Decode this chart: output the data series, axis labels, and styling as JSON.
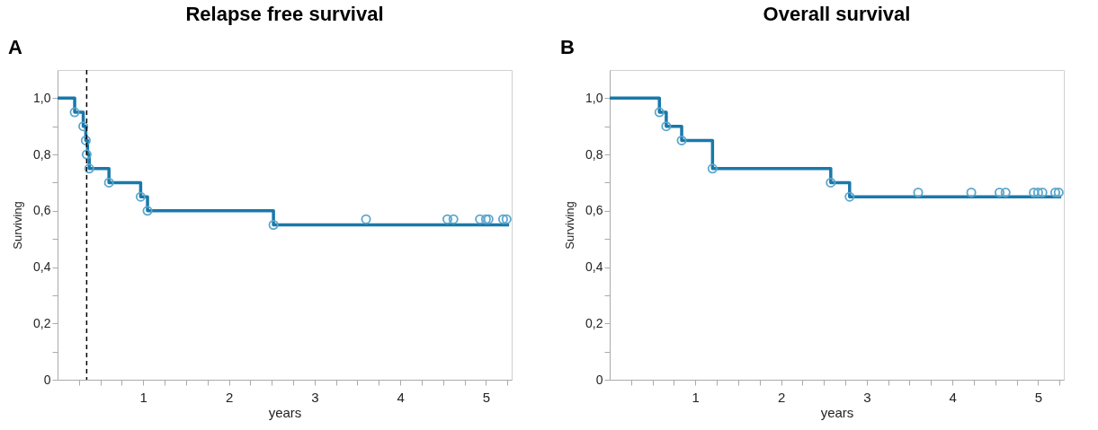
{
  "chart_data": [
    {
      "type": "step",
      "title": "Relapse free survival",
      "xlabel": "years",
      "ylabel": "Surviving",
      "annotations": [
        "A"
      ],
      "xlim": [
        0,
        5.3
      ],
      "ylim": [
        0,
        1.1
      ],
      "xticks": [
        {
          "value": 0.25,
          "label": null
        },
        {
          "value": 0.5,
          "label": null
        },
        {
          "value": 0.75,
          "label": null
        },
        1,
        {
          "value": 1.25,
          "label": null
        },
        {
          "value": 1.5,
          "label": null
        },
        {
          "value": 1.75,
          "label": null
        },
        2,
        {
          "value": 2.25,
          "label": null
        },
        {
          "value": 2.5,
          "label": null
        },
        {
          "value": 2.75,
          "label": null
        },
        3,
        {
          "value": 3.25,
          "label": null
        },
        {
          "value": 3.5,
          "label": null
        },
        {
          "value": 3.75,
          "label": null
        },
        4,
        {
          "value": 4.25,
          "label": null
        },
        {
          "value": 4.5,
          "label": null
        },
        {
          "value": 4.75,
          "label": null
        },
        5,
        {
          "value": 5.25,
          "label": null
        }
      ],
      "yticks": [
        0,
        {
          "value": 0.1,
          "label": null
        },
        {
          "value": 0.2,
          "label": "0,2"
        },
        {
          "value": 0.3,
          "label": null
        },
        {
          "value": 0.4,
          "label": "0,4"
        },
        {
          "value": 0.5,
          "label": null
        },
        {
          "value": 0.6,
          "label": "0,6"
        },
        {
          "value": 0.7,
          "label": null
        },
        {
          "value": 0.8,
          "label": "0,8"
        },
        {
          "value": 0.9,
          "label": null
        },
        {
          "value": 1.0,
          "label": "1,0"
        }
      ],
      "ref_lines": [
        {
          "axis": "x",
          "value": 0.34,
          "color": "#000000",
          "line_style": "dashed"
        }
      ],
      "series": [
        {
          "type": "step",
          "color": "#1a78aa",
          "x": [
            0,
            0.2,
            0.3,
            0.33,
            0.35,
            0.37,
            0.6,
            0.97,
            1.05,
            2.52,
            5.27
          ],
          "values": [
            1,
            0.95,
            0.9,
            0.85,
            0.8,
            0.75,
            0.7,
            0.65,
            0.6,
            0.55,
            0.55
          ]
        },
        {
          "type": "scatter",
          "marker": "circle",
          "color": "#5aa6cc",
          "x": [
            0.2,
            0.3,
            0.33,
            0.34,
            0.37,
            0.6,
            0.97,
            1.05,
            2.52,
            3.6,
            4.55,
            4.62,
            4.93,
            5.0,
            5.03,
            5.2,
            5.24
          ],
          "values": [
            0.95,
            0.9,
            0.85,
            0.8,
            0.75,
            0.7,
            0.65,
            0.6,
            0.55,
            0.57,
            0.57,
            0.57,
            0.57,
            0.57,
            0.57,
            0.57,
            0.57
          ]
        }
      ]
    },
    {
      "type": "step",
      "title": "Overall survival",
      "xlabel": "years",
      "ylabel": "Surviving",
      "annotations": [
        "B"
      ],
      "xlim": [
        0,
        5.3
      ],
      "ylim": [
        0,
        1.1
      ],
      "xticks": [
        {
          "value": 0.25,
          "label": null
        },
        {
          "value": 0.5,
          "label": null
        },
        {
          "value": 0.75,
          "label": null
        },
        1,
        {
          "value": 1.25,
          "label": null
        },
        {
          "value": 1.5,
          "label": null
        },
        {
          "value": 1.75,
          "label": null
        },
        2,
        {
          "value": 2.25,
          "label": null
        },
        {
          "value": 2.5,
          "label": null
        },
        {
          "value": 2.75,
          "label": null
        },
        3,
        {
          "value": 3.25,
          "label": null
        },
        {
          "value": 3.5,
          "label": null
        },
        {
          "value": 3.75,
          "label": null
        },
        4,
        {
          "value": 4.25,
          "label": null
        },
        {
          "value": 4.5,
          "label": null
        },
        {
          "value": 4.75,
          "label": null
        },
        5,
        {
          "value": 5.25,
          "label": null
        }
      ],
      "yticks": [
        0,
        {
          "value": 0.1,
          "label": null
        },
        {
          "value": 0.2,
          "label": "0,2"
        },
        {
          "value": 0.3,
          "label": null
        },
        {
          "value": 0.4,
          "label": "0,4"
        },
        {
          "value": 0.5,
          "label": null
        },
        {
          "value": 0.6,
          "label": "0,6"
        },
        {
          "value": 0.7,
          "label": null
        },
        {
          "value": 0.8,
          "label": "0,8"
        },
        {
          "value": 0.9,
          "label": null
        },
        {
          "value": 1.0,
          "label": "1,0"
        }
      ],
      "series": [
        {
          "type": "step",
          "color": "#1a78aa",
          "x": [
            0,
            0.58,
            0.66,
            0.84,
            1.2,
            2.58,
            2.8,
            5.27
          ],
          "values": [
            1,
            0.95,
            0.9,
            0.85,
            0.75,
            0.7,
            0.65,
            0.65
          ]
        },
        {
          "type": "scatter",
          "marker": "circle",
          "color": "#5aa6cc",
          "x": [
            0.58,
            0.66,
            0.84,
            1.2,
            2.58,
            2.8,
            3.6,
            4.22,
            4.55,
            4.62,
            4.95,
            5.0,
            5.05,
            5.2,
            5.24
          ],
          "values": [
            0.95,
            0.9,
            0.85,
            0.75,
            0.7,
            0.65,
            0.665,
            0.665,
            0.665,
            0.665,
            0.665,
            0.665,
            0.665,
            0.665,
            0.665
          ]
        }
      ]
    }
  ]
}
